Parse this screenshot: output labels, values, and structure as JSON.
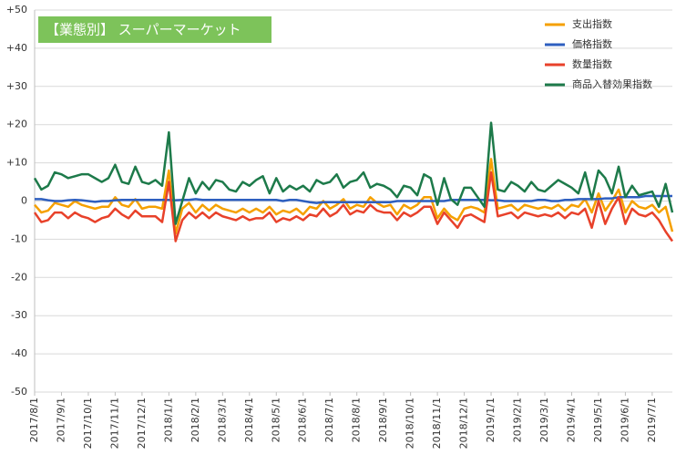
{
  "chart_data": {
    "type": "line",
    "title": "【業態別】 スーパーマーケット",
    "title_color": "#7dc35a",
    "legend": "upper right",
    "grid": true,
    "ylim": [
      -50,
      50
    ],
    "yticks": [
      {
        "value": 50,
        "label": "+50"
      },
      {
        "value": 40,
        "label": "+40"
      },
      {
        "value": 30,
        "label": "+30"
      },
      {
        "value": 20,
        "label": "+20"
      },
      {
        "value": 10,
        "label": "+10"
      },
      0,
      -10,
      -20,
      -30,
      -40,
      -50
    ],
    "categories": [
      "2017/8/1",
      null,
      null,
      null,
      "2017/9/1",
      null,
      null,
      null,
      "2017/10/1",
      null,
      null,
      null,
      "2017/11/1",
      null,
      null,
      null,
      "2017/12/1",
      null,
      null,
      null,
      "2018/1/1",
      null,
      null,
      null,
      "2018/2/1",
      null,
      null,
      null,
      "2018/3/1",
      null,
      null,
      null,
      "2018/4/1",
      null,
      null,
      null,
      "2018/5/1",
      null,
      null,
      null,
      "2018/6/1",
      null,
      null,
      null,
      "2018/7/1",
      null,
      null,
      null,
      "2018/8/1",
      null,
      null,
      null,
      "2018/9/1",
      null,
      null,
      null,
      "2018/10/1",
      null,
      null,
      null,
      "2018/11/1",
      null,
      null,
      null,
      "2018/12/1",
      null,
      null,
      null,
      "2019/1/1",
      null,
      null,
      null,
      "2019/2/1",
      null,
      null,
      null,
      "2019/3/1",
      null,
      null,
      null,
      "2019/4/1",
      null,
      null,
      null,
      "2019/5/1",
      null,
      null,
      null,
      "2019/6/1",
      null,
      null,
      null,
      "2019/7/1",
      null,
      null,
      null
    ],
    "series": [
      {
        "name": "支出指数",
        "color": "#f5a000",
        "values": [
          -1,
          -3,
          -2.5,
          -0.5,
          -1,
          -1.5,
          0,
          -1,
          -1.5,
          -2,
          -1.5,
          -1.5,
          1,
          -1,
          -1.5,
          0.5,
          -2,
          -1.5,
          -1.5,
          -2,
          8,
          -8.5,
          -2,
          -0.5,
          -3,
          -1,
          -2.5,
          -1,
          -2,
          -2.5,
          -3,
          -2,
          -3,
          -2,
          -3,
          -1.5,
          -3.5,
          -2.5,
          -3,
          -2,
          -3.5,
          -1.5,
          -2,
          0,
          -2,
          -1,
          0.5,
          -2,
          -1,
          -1.5,
          1,
          -0.5,
          -1.5,
          -1,
          -3.5,
          -1,
          -2,
          -1,
          1,
          1,
          -4.5,
          -2,
          -4,
          -5,
          -2,
          -1.5,
          -2,
          -3,
          11,
          -2,
          -1.5,
          -1,
          -2.5,
          -1,
          -1.5,
          -2,
          -1.5,
          -2,
          -1,
          -2.5,
          -1,
          -1.5,
          0.5,
          -3,
          2,
          -2.5,
          0,
          3,
          -3,
          0,
          -1.5,
          -2,
          -1,
          -3,
          -1.5,
          -8
        ]
      },
      {
        "name": "価格指数",
        "color": "#2e5fbf",
        "values": [
          0.5,
          0.5,
          0.2,
          0,
          0,
          0.2,
          0.3,
          0.2,
          0,
          -0.2,
          0,
          0,
          0.2,
          0.3,
          0.3,
          0.3,
          0.3,
          0.3,
          0.3,
          0.3,
          0.3,
          0.2,
          0.3,
          0.3,
          0.5,
          0.3,
          0.3,
          0.3,
          0.3,
          0.3,
          0.3,
          0.3,
          0.3,
          0.3,
          0.3,
          0.3,
          0.3,
          0,
          0.3,
          0.3,
          0,
          -0.3,
          -0.5,
          -0.3,
          -0.3,
          -0.3,
          -0.3,
          -0.3,
          -0.3,
          -0.3,
          -0.3,
          -0.3,
          -0.3,
          -0.3,
          0,
          0,
          0,
          0,
          0,
          0,
          0,
          0,
          0.3,
          0.3,
          0.3,
          0.3,
          0.3,
          0.3,
          0.2,
          0.2,
          0,
          0,
          0,
          0,
          0,
          0.3,
          0.3,
          0,
          0,
          0.3,
          0.3,
          0.5,
          0.5,
          0.5,
          0.5,
          0.7,
          0.7,
          1,
          1,
          1,
          1,
          1.3,
          1.3,
          1.3,
          1.3,
          1.3
        ]
      },
      {
        "name": "数量指数",
        "color": "#e8412a",
        "values": [
          -3,
          -5.5,
          -5,
          -3,
          -3,
          -4.5,
          -3,
          -4,
          -4.5,
          -5.5,
          -4.5,
          -4,
          -2,
          -3.5,
          -4.5,
          -2.5,
          -4,
          -4,
          -4,
          -5.5,
          5,
          -10.5,
          -5,
          -3,
          -4.5,
          -3,
          -4.5,
          -3,
          -4,
          -4.5,
          -5,
          -4,
          -5,
          -4.5,
          -4.5,
          -3,
          -5.5,
          -4.5,
          -5,
          -4,
          -5,
          -3.5,
          -4,
          -2,
          -4,
          -3,
          -1,
          -3.5,
          -2.5,
          -3,
          -1,
          -2.5,
          -3,
          -3,
          -5,
          -3,
          -4,
          -3,
          -1.5,
          -1.5,
          -6,
          -3,
          -5,
          -7,
          -4,
          -3.5,
          -4.5,
          -5.5,
          7.5,
          -4,
          -3.5,
          -3,
          -4.5,
          -3,
          -3.5,
          -4,
          -3.5,
          -4,
          -3,
          -4.5,
          -3,
          -3.5,
          -2,
          -7,
          0,
          -6,
          -2,
          1,
          -6,
          -2,
          -3.5,
          -4,
          -3,
          -5,
          -8,
          -10.5
        ]
      },
      {
        "name": "商品入替効果指数",
        "color": "#1d7a4a",
        "values": [
          6,
          3,
          4,
          7.5,
          7,
          6,
          6.5,
          7,
          7,
          6,
          5,
          6,
          9.5,
          5,
          4.5,
          9,
          5,
          4.5,
          5.5,
          4,
          18,
          -6,
          0,
          6,
          2,
          5,
          3,
          5.5,
          5,
          3,
          2.5,
          5,
          4,
          5.5,
          6.5,
          2,
          6,
          2.5,
          4,
          3,
          4,
          2.5,
          5.5,
          4.5,
          5,
          7,
          3.5,
          5,
          5.5,
          7.5,
          3.5,
          4.5,
          4,
          3,
          1,
          4,
          3.5,
          1.5,
          7,
          6,
          -1,
          6,
          0.5,
          -1,
          3.5,
          3.5,
          1,
          -1.5,
          20.5,
          3,
          2.5,
          5,
          4,
          2.5,
          5,
          3,
          2.5,
          4,
          5.5,
          4.5,
          3.5,
          2,
          7.5,
          0.5,
          8,
          6,
          2,
          9,
          1,
          4,
          1.5,
          2,
          2.5,
          -1.5,
          4.5,
          -3
        ]
      }
    ]
  }
}
